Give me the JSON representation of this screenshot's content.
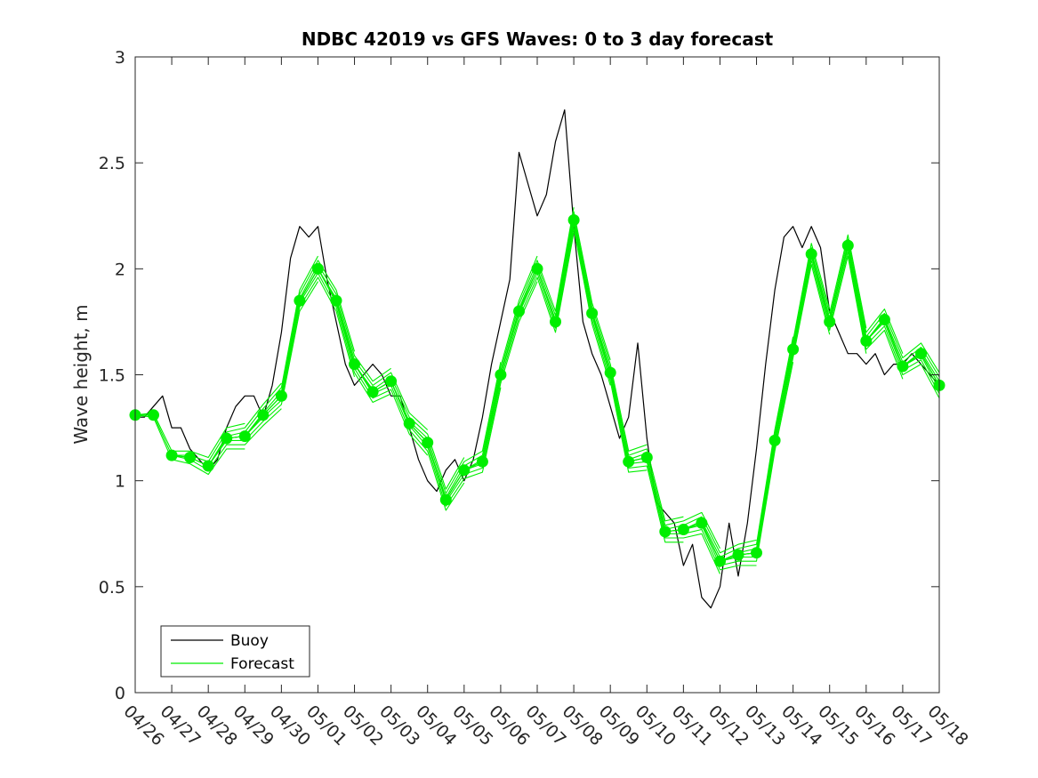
{
  "chart_data": {
    "type": "line",
    "title": "NDBC 42019 vs GFS Waves: 0 to 3 day forecast",
    "xlabel": "",
    "ylabel": "Wave height, m",
    "ylim": [
      0,
      3
    ],
    "yticks": [
      "0",
      "0.5",
      "1",
      "1.5",
      "2",
      "2.5",
      "3"
    ],
    "xlim": [
      "04/26",
      "05/18"
    ],
    "xticks": [
      "04/26",
      "04/27",
      "04/28",
      "04/29",
      "04/30",
      "05/01",
      "05/02",
      "05/03",
      "05/04",
      "05/05",
      "05/06",
      "05/07",
      "05/08",
      "05/09",
      "05/10",
      "05/11",
      "05/12",
      "05/13",
      "05/14",
      "05/15",
      "05/16",
      "05/17",
      "05/18"
    ],
    "grid": false,
    "legend": {
      "placement": "bottom-left",
      "entries": [
        "Buoy",
        "Forecast"
      ]
    },
    "colors": {
      "buoy": "#000000",
      "forecast": "#00ee00"
    },
    "series": [
      {
        "name": "Buoy",
        "x_days": [
          0,
          0.25,
          0.5,
          0.75,
          1,
          1.25,
          1.5,
          1.75,
          2,
          2.25,
          2.5,
          2.75,
          3,
          3.25,
          3.5,
          3.75,
          4,
          4.25,
          4.5,
          4.75,
          5,
          5.25,
          5.5,
          5.75,
          6,
          6.25,
          6.5,
          6.75,
          7,
          7.25,
          7.5,
          7.75,
          8,
          8.25,
          8.5,
          8.75,
          9,
          9.25,
          9.5,
          9.75,
          10,
          10.25,
          10.5,
          10.75,
          11,
          11.25,
          11.5,
          11.75,
          12,
          12.25,
          12.5,
          12.75,
          13,
          13.25,
          13.5,
          13.75,
          14,
          14.25,
          14.5,
          14.75,
          15,
          15.25,
          15.5,
          15.75,
          16,
          16.25,
          16.5,
          16.75,
          17,
          17.25,
          17.5,
          17.75,
          18,
          18.25,
          18.5,
          18.75,
          19,
          19.25,
          19.5,
          19.75,
          20,
          20.25,
          20.5,
          20.75,
          21,
          21.25,
          21.5,
          21.75,
          22
        ],
        "values": [
          1.3,
          1.3,
          1.35,
          1.4,
          1.25,
          1.25,
          1.15,
          1.1,
          1.05,
          1.1,
          1.25,
          1.35,
          1.4,
          1.4,
          1.3,
          1.45,
          1.7,
          2.05,
          2.2,
          2.15,
          2.2,
          1.95,
          1.75,
          1.55,
          1.45,
          1.5,
          1.55,
          1.5,
          1.4,
          1.4,
          1.25,
          1.1,
          1.0,
          0.95,
          1.05,
          1.1,
          1.0,
          1.1,
          1.3,
          1.55,
          1.75,
          1.95,
          2.55,
          2.4,
          2.25,
          2.35,
          2.6,
          2.75,
          2.2,
          1.75,
          1.6,
          1.5,
          1.35,
          1.2,
          1.3,
          1.65,
          1.2,
          0.9,
          0.85,
          0.8,
          0.6,
          0.7,
          0.45,
          0.4,
          0.5,
          0.8,
          0.55,
          0.8,
          1.15,
          1.55,
          1.9,
          2.15,
          2.2,
          2.1,
          2.2,
          2.1,
          1.8,
          1.7,
          1.6,
          1.6,
          1.55,
          1.6,
          1.5,
          1.55,
          1.55,
          1.6,
          1.55,
          1.5,
          1.45
        ]
      },
      {
        "name": "Forecast",
        "x_days": [
          0,
          0.5,
          1,
          1.5,
          2,
          2.5,
          3,
          3.5,
          4,
          4.5,
          5,
          5.5,
          6,
          6.5,
          7,
          7.5,
          8,
          8.5,
          9,
          9.5,
          10,
          10.5,
          11,
          11.5,
          12,
          12.5,
          13,
          13.5,
          14,
          14.5,
          15,
          15.5,
          16,
          16.5,
          17,
          17.5,
          18,
          18.5,
          19,
          19.5,
          20,
          20.5,
          21,
          21.5,
          22
        ],
        "values": [
          1.31,
          1.31,
          1.12,
          1.11,
          1.07,
          1.2,
          1.21,
          1.31,
          1.4,
          1.85,
          2.0,
          1.85,
          1.55,
          1.42,
          1.47,
          1.27,
          1.18,
          0.91,
          1.05,
          1.09,
          1.5,
          1.8,
          2.0,
          1.75,
          2.23,
          1.79,
          1.51,
          1.09,
          1.11,
          0.76,
          0.77,
          0.8,
          0.62,
          0.65,
          0.66,
          1.19,
          1.62,
          2.07,
          1.75,
          2.11,
          1.66,
          1.76,
          1.54,
          1.6,
          1.45
        ]
      }
    ]
  }
}
